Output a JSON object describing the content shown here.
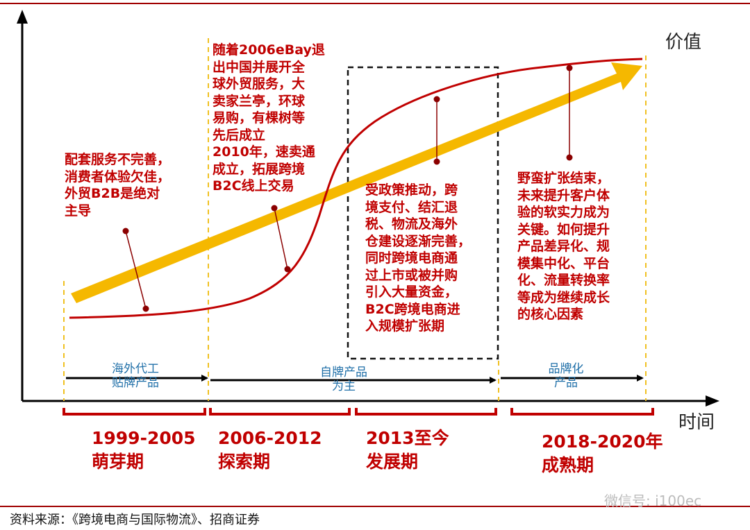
{
  "axes": {
    "y_label": "价值",
    "x_label": "时间"
  },
  "annotations": {
    "embryo": "配套服务不完善，\n消费者体验欠佳，\n外贸B2B是绝对\n主导",
    "explore": "随着2006eBay退\n出中国并展开全\n球外贸服务，大\n卖家兰亭，环球\n易购，有棵树等\n先后成立\n2010年，速卖通\n成立，拓展跨境\nB2C线上交易",
    "develop": "受政策推动，跨\n境支付、结汇退\n税、物流及海外\n仓建设逐渐完善，\n同时跨境电商通\n过上市或被并购\n引入大量资金，\nB2C跨境电商进\n入规模扩张期",
    "mature": "野蛮扩张结束，\n未来提升客户体\n验的软实力成为\n关键。如何提升\n产品差异化、规\n模集中化、平台\n化、流量转换率\n等成为继续成长\n的核心因素"
  },
  "bands": [
    {
      "label": "海外代工\n贴牌产品"
    },
    {
      "label": "自牌产品\n为主"
    },
    {
      "label": "品牌化\n产品"
    }
  ],
  "phases": [
    {
      "label": "1999-2005\n萌芽期"
    },
    {
      "label": "2006-2012\n探索期"
    },
    {
      "label": "2013至今\n发展期"
    },
    {
      "label": "2018-2020年\n成熟期"
    }
  ],
  "source": "资料来源：《跨境电商与国际物流》、招商证券",
  "watermark": "微信号: i100ec",
  "colors": {
    "red": "#c00000",
    "gold": "#f5b800",
    "dashed_yellow": "#f0c020",
    "blue_text": "#1f6fa8"
  }
}
